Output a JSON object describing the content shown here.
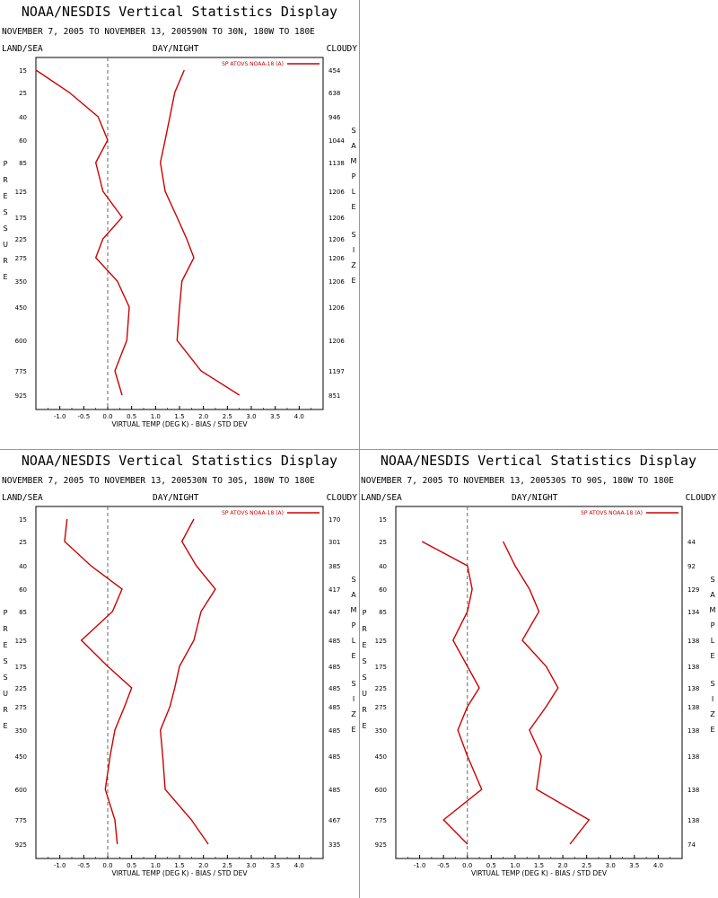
{
  "chart_data": [
    {
      "type": "line",
      "title": "NOAA/NESDIS Vertical Statistics Display",
      "dates": "NOVEMBER 7, 2005 TO NOVEMBER 13, 200590N TO 30N, 180W TO 180E",
      "header_left": "LAND/SEA",
      "header_mid": "DAY/NIGHT",
      "header_right": "CLOUDY",
      "ylabel": "PRESSURE",
      "right_label": "SAMPLE SIZE",
      "xlabel": "VIRTUAL TEMP (DEG K) - BIAS / STD DEV",
      "legend": "SP ATOVS NOAA-18 (A)",
      "xlim": [
        -1.5,
        4.5
      ],
      "x_ticks": [
        -1.0,
        -0.5,
        0.0,
        0.5,
        1.0,
        1.5,
        2.0,
        2.5,
        3.0,
        3.5,
        4.0
      ],
      "x_tick_labels": [
        "-1.0",
        "-0.5",
        "0.0",
        "0.5",
        "1.0",
        "1.5",
        "2.0",
        "2.5",
        "3.0",
        "3.5",
        "4.0"
      ],
      "pressure_levels": [
        "15",
        "25",
        "40",
        "60",
        "85",
        "125",
        "175",
        "225",
        "275",
        "350",
        "450",
        "600",
        "775",
        "925"
      ],
      "sample_size": [
        "454",
        "638",
        "946",
        "1044",
        "1138",
        "1206",
        "1206",
        "1206",
        "1206",
        "1206",
        "1206",
        "1206",
        "1197",
        "851"
      ],
      "series": [
        {
          "values": [
            -1.5,
            -0.8,
            -0.2,
            0.0,
            -0.25,
            -0.1,
            0.3,
            -0.1,
            -0.25,
            0.2,
            0.45,
            0.4,
            0.15,
            0.3
          ]
        },
        {
          "values": [
            1.6,
            1.4,
            1.3,
            1.2,
            1.1,
            1.2,
            1.45,
            1.65,
            1.8,
            1.55,
            1.5,
            1.45,
            1.95,
            2.75
          ]
        }
      ]
    },
    {
      "type": "line",
      "title": "NOAA/NESDIS Vertical Statistics Display",
      "dates": "NOVEMBER 7, 2005 TO NOVEMBER 13, 200530N TO 30S, 180W TO 180E",
      "header_left": "LAND/SEA",
      "header_mid": "DAY/NIGHT",
      "header_right": "CLOUDY",
      "ylabel": "PRESSURE",
      "right_label": "SAMPLE SIZE",
      "xlabel": "VIRTUAL TEMP (DEG K) - BIAS / STD DEV",
      "legend": "SP ATOVS NOAA-18 (A)",
      "xlim": [
        -1.5,
        4.5
      ],
      "x_ticks": [
        -1.0,
        -0.5,
        0.0,
        0.5,
        1.0,
        1.5,
        2.0,
        2.5,
        3.0,
        3.5,
        4.0
      ],
      "x_tick_labels": [
        "-1.0",
        "-0.5",
        "0.0",
        "0.5",
        "1.0",
        "1.5",
        "2.0",
        "2.5",
        "3.0",
        "3.5",
        "4.0"
      ],
      "pressure_levels": [
        "15",
        "25",
        "40",
        "60",
        "85",
        "125",
        "175",
        "225",
        "275",
        "350",
        "450",
        "600",
        "775",
        "925"
      ],
      "sample_size": [
        "170",
        "301",
        "385",
        "417",
        "447",
        "485",
        "485",
        "485",
        "485",
        "485",
        "485",
        "485",
        "467",
        "335"
      ],
      "series": [
        {
          "values": [
            -0.85,
            -0.9,
            -0.35,
            0.3,
            0.1,
            -0.55,
            0.0,
            0.5,
            0.35,
            0.15,
            0.05,
            -0.05,
            0.15,
            0.2
          ]
        },
        {
          "values": [
            1.8,
            1.55,
            1.85,
            2.25,
            1.95,
            1.8,
            1.5,
            1.4,
            1.3,
            1.1,
            1.15,
            1.2,
            1.75,
            2.1
          ]
        }
      ]
    },
    {
      "type": "line",
      "title": "NOAA/NESDIS Vertical Statistics Display",
      "dates": "NOVEMBER 7, 2005 TO NOVEMBER 13, 200530S TO 90S, 180W TO 180E",
      "header_left": "LAND/SEA",
      "header_mid": "DAY/NIGHT",
      "header_right": "CLOUDY",
      "ylabel": "PRESSURE",
      "right_label": "SAMPLE SIZE",
      "xlabel": "VIRTUAL TEMP (DEG K) - BIAS / STD DEV",
      "legend": "SP ATOVS NOAA-18 (A)",
      "xlim": [
        -1.5,
        4.5
      ],
      "x_ticks": [
        -1.0,
        -0.5,
        0.0,
        0.5,
        1.0,
        1.5,
        2.0,
        2.5,
        3.0,
        3.5,
        4.0
      ],
      "x_tick_labels": [
        "-1.0",
        "-0.5",
        "0.0",
        "0.5",
        "1.0",
        "1.5",
        "2.0",
        "2.5",
        "3.0",
        "3.5",
        "4.0"
      ],
      "pressure_levels": [
        "15",
        "25",
        "40",
        "60",
        "85",
        "125",
        "175",
        "225",
        "275",
        "350",
        "450",
        "600",
        "775",
        "925"
      ],
      "sample_size": [
        "",
        "44",
        "92",
        "129",
        "134",
        "138",
        "138",
        "138",
        "138",
        "138",
        "138",
        "138",
        "138",
        "74"
      ],
      "series": [
        {
          "values": [
            null,
            -0.95,
            0.0,
            0.1,
            0.0,
            -0.3,
            0.0,
            0.25,
            0.0,
            -0.2,
            0.0,
            0.3,
            -0.5,
            0.0
          ]
        },
        {
          "values": [
            null,
            0.75,
            1.0,
            1.3,
            1.5,
            1.15,
            1.65,
            1.9,
            1.65,
            1.3,
            1.55,
            1.45,
            2.55,
            2.15
          ]
        }
      ]
    }
  ],
  "colors": {
    "line": "#cc0000",
    "axis": "#000000",
    "zero_line": "#666666",
    "divider": "#999999"
  }
}
